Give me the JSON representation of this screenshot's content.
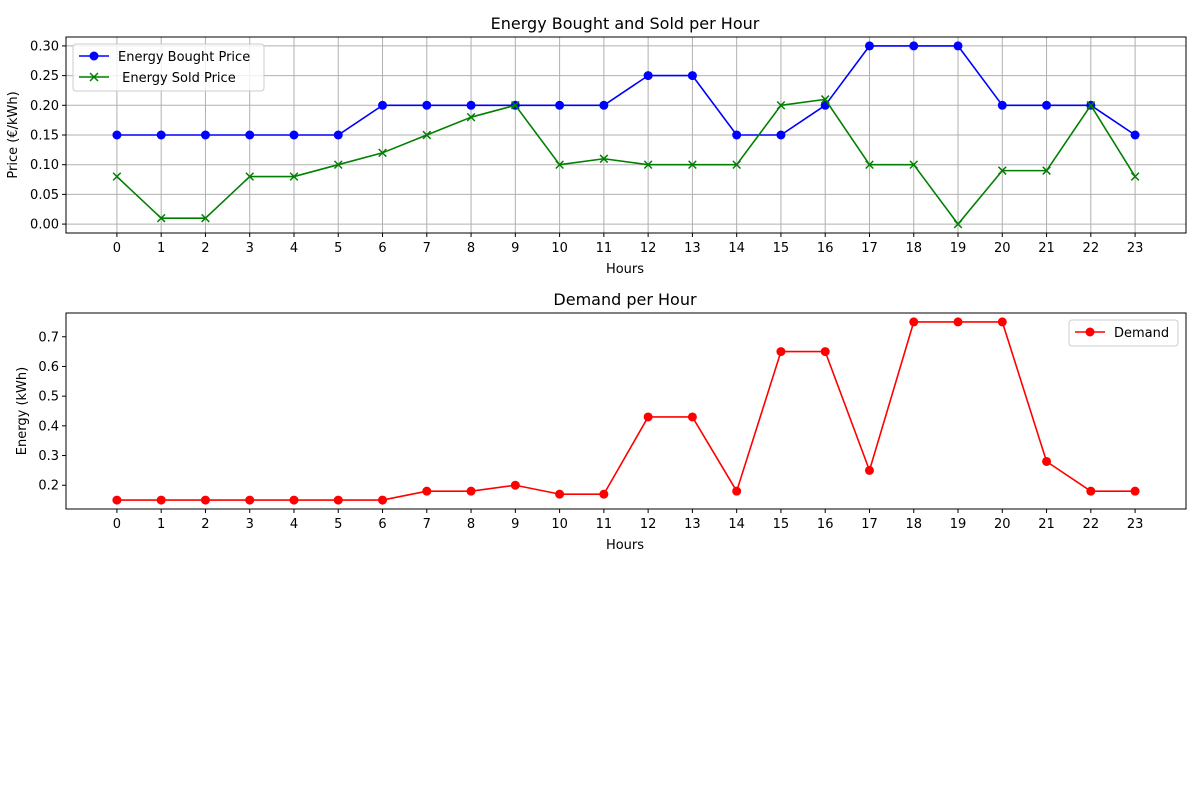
{
  "chart_data": [
    {
      "type": "line",
      "title": "Energy Bought and Sold per Hour",
      "xlabel": "Hours",
      "ylabel": "Price (€/kWh)",
      "x": [
        0,
        1,
        2,
        3,
        4,
        5,
        6,
        7,
        8,
        9,
        10,
        11,
        12,
        13,
        14,
        15,
        16,
        17,
        18,
        19,
        20,
        21,
        22,
        23
      ],
      "ylim": [
        -0.015,
        0.315
      ],
      "yticks": [
        0.0,
        0.05,
        0.1,
        0.15,
        0.2,
        0.25,
        0.3
      ],
      "ytick_labels": [
        "0.00",
        "0.05",
        "0.10",
        "0.15",
        "0.20",
        "0.25",
        "0.30"
      ],
      "grid": true,
      "legend_position": "upper-left",
      "series": [
        {
          "name": "Energy Bought Price",
          "color": "#0000ff",
          "marker": "circle",
          "values": [
            0.15,
            0.15,
            0.15,
            0.15,
            0.15,
            0.15,
            0.2,
            0.2,
            0.2,
            0.2,
            0.2,
            0.2,
            0.25,
            0.25,
            0.15,
            0.15,
            0.2,
            0.3,
            0.3,
            0.3,
            0.2,
            0.2,
            0.2,
            0.15
          ]
        },
        {
          "name": " Energy Sold Price",
          "color": "#008000",
          "marker": "x",
          "values": [
            0.08,
            0.01,
            0.01,
            0.08,
            0.08,
            0.1,
            0.12,
            0.15,
            0.18,
            0.2,
            0.1,
            0.11,
            0.1,
            0.1,
            0.1,
            0.2,
            0.21,
            0.1,
            0.1,
            0.0,
            0.09,
            0.09,
            0.2,
            0.08
          ]
        }
      ]
    },
    {
      "type": "line",
      "title": "Demand per Hour",
      "xlabel": "Hours",
      "ylabel": "Energy (kWh)",
      "x": [
        0,
        1,
        2,
        3,
        4,
        5,
        6,
        7,
        8,
        9,
        10,
        11,
        12,
        13,
        14,
        15,
        16,
        17,
        18,
        19,
        20,
        21,
        22,
        23
      ],
      "ylim": [
        0.12,
        0.78
      ],
      "yticks": [
        0.2,
        0.3,
        0.4,
        0.5,
        0.6,
        0.7
      ],
      "ytick_labels": [
        "0.2",
        "0.3",
        "0.4",
        "0.5",
        "0.6",
        "0.7"
      ],
      "grid": false,
      "legend_position": "upper-right",
      "series": [
        {
          "name": "Demand",
          "color": "#ff0000",
          "marker": "circle",
          "values": [
            0.15,
            0.15,
            0.15,
            0.15,
            0.15,
            0.15,
            0.15,
            0.18,
            0.18,
            0.2,
            0.17,
            0.17,
            0.43,
            0.43,
            0.18,
            0.65,
            0.65,
            0.25,
            0.75,
            0.75,
            0.75,
            0.28,
            0.18,
            0.18
          ]
        }
      ]
    }
  ]
}
